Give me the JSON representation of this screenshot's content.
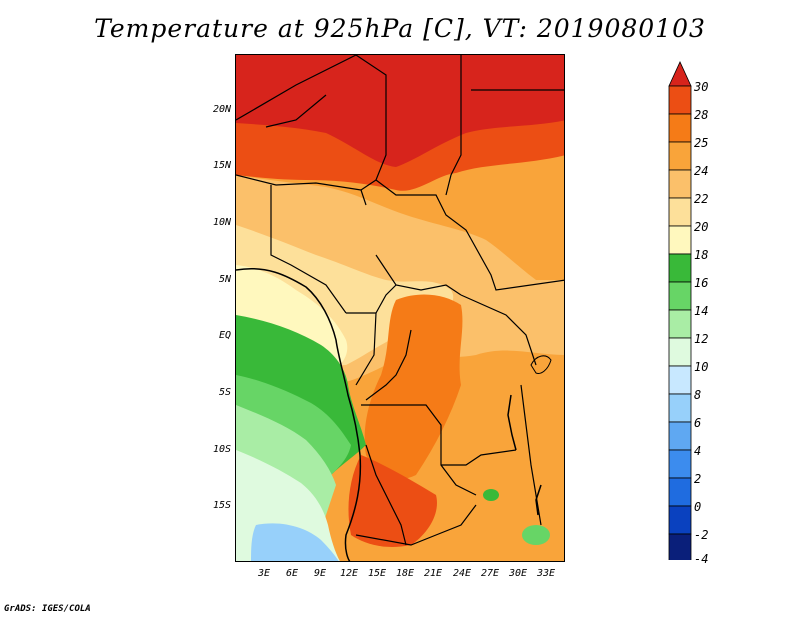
{
  "title": "Temperature at 925hPa [C], VT: 2019080103",
  "credit": "GrADS: IGES/COLA",
  "latitude_labels": [
    "20N",
    "15N",
    "10N",
    "5N",
    "EQ",
    "5S",
    "10S",
    "15S"
  ],
  "longitude_labels": [
    "3E",
    "6E",
    "9E",
    "12E",
    "15E",
    "18E",
    "21E",
    "24E",
    "27E",
    "30E",
    "33E"
  ],
  "colorbar": {
    "labels": [
      "30",
      "28",
      "25",
      "24",
      "22",
      "20",
      "18",
      "16",
      "14",
      "12",
      "10",
      "8",
      "6",
      "4",
      "2",
      "0",
      "-2",
      "-4"
    ],
    "colors": [
      "#d7241c",
      "#ec4e14",
      "#f57b17",
      "#f9a43a",
      "#fbc06a",
      "#fde09a",
      "#fff8be",
      "#39b939",
      "#67d566",
      "#a9eda5",
      "#dffadf",
      "#c8e8ff",
      "#97d0fa",
      "#5fa8f2",
      "#3c8cee",
      "#1f6ce0",
      "#0a41bf",
      "#0a1f7a",
      "#0a0a5e",
      "#dcdcff"
    ]
  }
}
